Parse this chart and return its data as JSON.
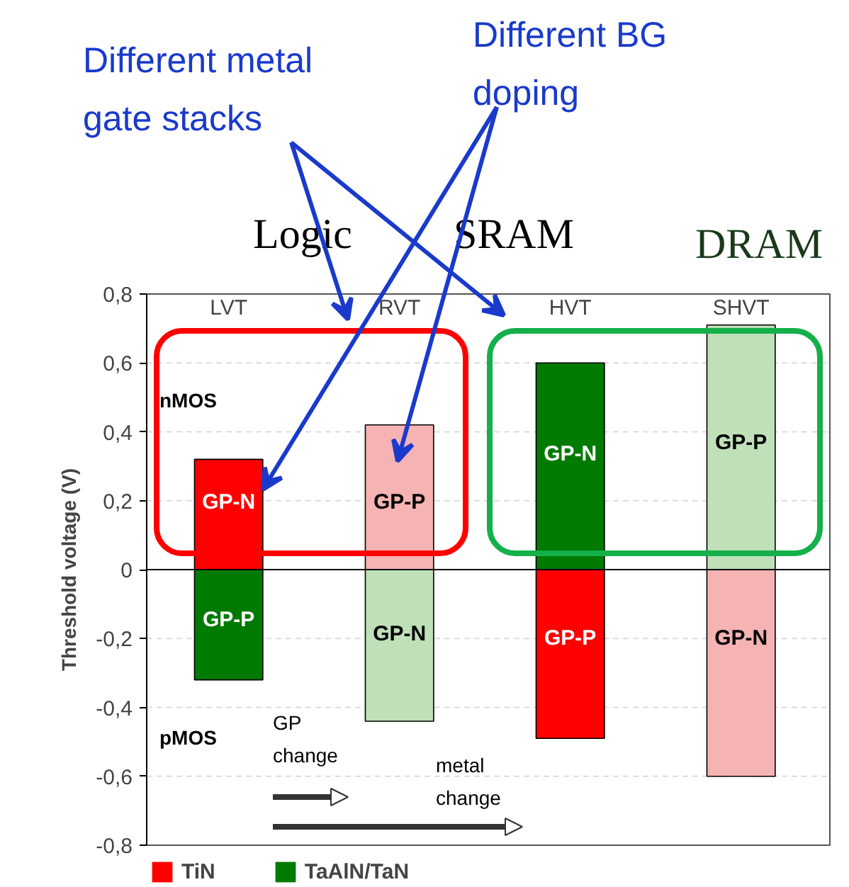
{
  "chart_data": {
    "type": "bar",
    "stacked": true,
    "ylabel": "Threshold voltage (V)",
    "categories": [
      "LVT",
      "RVT",
      "HVT",
      "SHVT"
    ],
    "series": [
      {
        "name": "TiN",
        "color": "#ff0000",
        "colors": [
          "#ff0000",
          "#f6b3b3",
          "#ff0000",
          "#f6b3b3"
        ],
        "values": [
          0.32,
          0.42,
          -0.49,
          -0.6
        ]
      },
      {
        "name": "TaAlN/TaN",
        "color": "#007a00",
        "colors": [
          "#007a00",
          "#bfe0b8",
          "#007a00",
          "#bfe0b8"
        ],
        "values": [
          -0.32,
          -0.44,
          0.6,
          0.71
        ]
      }
    ],
    "ylim": [
      -0.8,
      0.8
    ],
    "yticks": [
      {
        "value": -0.8,
        "label": "-0,8"
      },
      {
        "value": -0.6,
        "label": "-0,6"
      },
      {
        "value": -0.4,
        "label": "-0,4"
      },
      {
        "value": -0.2,
        "label": "-0,2"
      },
      0,
      {
        "value": 0.2,
        "label": "0,2"
      },
      {
        "value": 0.4,
        "label": "0,4"
      },
      {
        "value": 0.6,
        "label": "0,6"
      },
      {
        "value": 0.8,
        "label": "0,8"
      }
    ],
    "grid": "y",
    "legend": "bottom",
    "ref_lines": [
      {
        "axis": "y",
        "value": 0
      }
    ],
    "annotations": [
      "GP-N",
      "GP-P",
      "GP-P",
      "GP-N",
      "GP-N",
      "GP-P",
      "GP-P",
      "GP-N",
      "nMOS",
      "pMOS",
      "GP change",
      "metal change",
      "Logic",
      "SRAM",
      "DRAM",
      "Different metal gate stacks",
      "Different BG doping"
    ]
  }
}
